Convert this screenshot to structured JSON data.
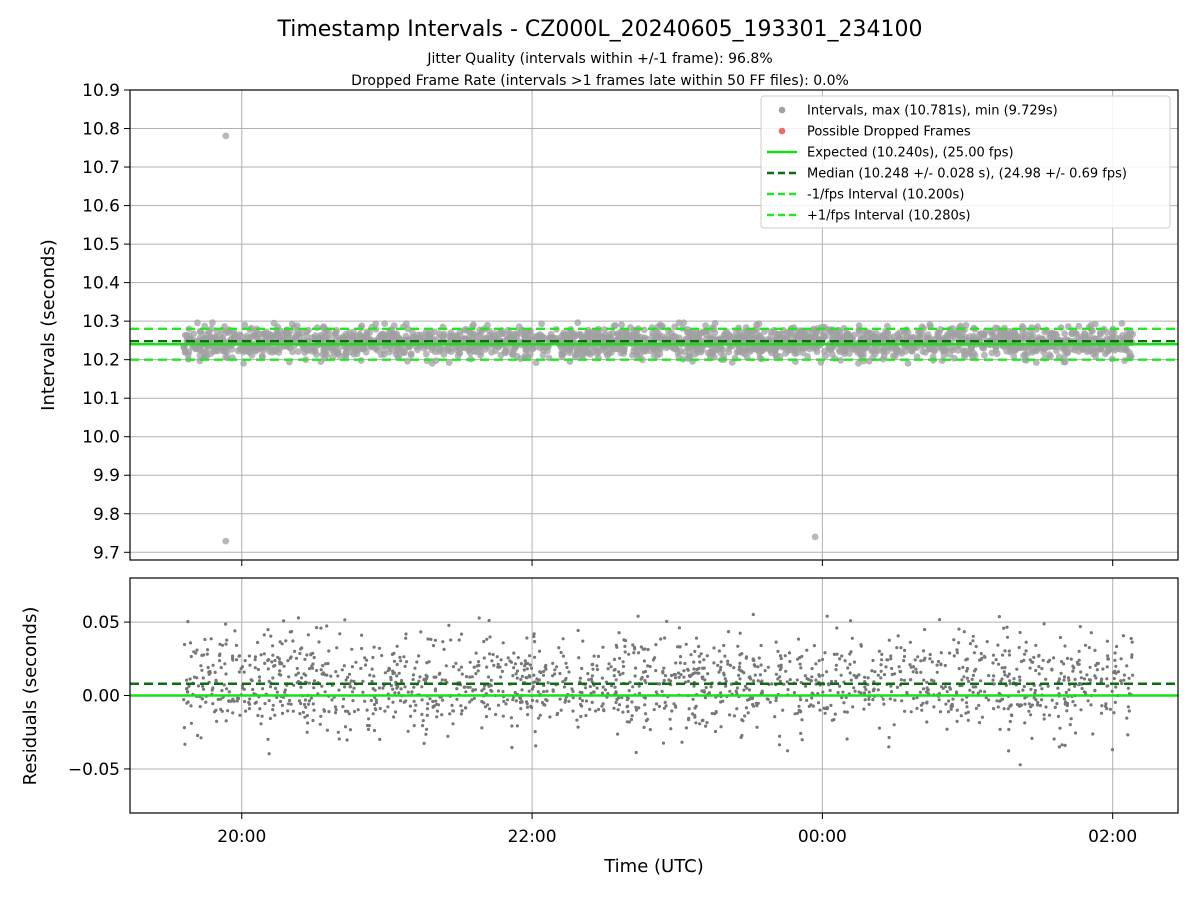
{
  "chart_data": {
    "type": "scatter",
    "title": "Timestamp Intervals - CZ000L_20240605_193301_234100",
    "subtitle_lines": [
      "Jitter Quality (intervals within +/-1 frame): 96.8%",
      "Dropped Frame Rate (intervals >1 frames late within 50 FF files): 0.0%"
    ],
    "xlabel": "Time (UTC)",
    "x_tick_labels": [
      "20:00",
      "22:00",
      "00:00",
      "02:00"
    ],
    "x_ticks_hours": [
      20,
      22,
      24,
      26
    ],
    "x_range_hours": [
      19.23,
      26.45
    ],
    "data_x_range_hours": [
      19.6,
      26.14
    ],
    "panels": [
      {
        "name": "intervals",
        "ylabel": "Intervals (seconds)",
        "ylim": [
          9.68,
          10.9
        ],
        "y_ticks": [
          "10.9",
          "10.8",
          "10.7",
          "10.6",
          "10.5",
          "10.4",
          "10.3",
          "10.2",
          "10.1",
          "10.0",
          "9.9",
          "9.8",
          "9.7"
        ],
        "y_tick_values": [
          10.9,
          10.8,
          10.7,
          10.6,
          10.5,
          10.4,
          10.3,
          10.2,
          10.1,
          10.0,
          9.9,
          9.8,
          9.7
        ],
        "grid": true,
        "legend_position": "top-right",
        "legend": [
          {
            "label": "Intervals, max (10.781s), min (9.729s)",
            "marker": "dot",
            "color": "#a0a0a0"
          },
          {
            "label": "Possible Dropped Frames",
            "marker": "dot",
            "color": "#ef6b6b"
          },
          {
            "label": "Expected (10.240s), (25.00 fps)",
            "marker": "solid",
            "color": "#16e016"
          },
          {
            "label": "Median (10.248 +/- 0.028 s), (24.98 +/- 0.69 fps)",
            "marker": "dashed",
            "color": "#0b6e0b"
          },
          {
            "label": "-1/fps Interval (10.200s)",
            "marker": "dashed",
            "color": "#22e822"
          },
          {
            "label": "+1/fps Interval (10.280s)",
            "marker": "dashed",
            "color": "#22e822"
          }
        ],
        "lines": [
          {
            "name": "expected",
            "y": 10.24,
            "style": "solid",
            "color": "#16e016"
          },
          {
            "name": "median",
            "y": 10.248,
            "style": "dashed",
            "color": "#0b6e0b"
          },
          {
            "name": "minus-1-fps",
            "y": 10.2,
            "style": "dashed",
            "color": "#22e822"
          },
          {
            "name": "plus-1-fps",
            "y": 10.28,
            "style": "dashed",
            "color": "#22e822"
          }
        ],
        "point_color": "#a0a0a0",
        "bulk_points": {
          "count": 2200,
          "center": 10.245,
          "spread": 0.02,
          "min": 10.19,
          "max": 10.296
        },
        "outliers": [
          {
            "x_hours": 19.89,
            "y": 10.781
          },
          {
            "x_hours": 19.89,
            "y": 9.729
          },
          {
            "x_hours": 23.95,
            "y": 9.74
          }
        ]
      },
      {
        "name": "residuals",
        "ylabel": "Residuals (seconds)",
        "ylim": [
          -0.08,
          0.08
        ],
        "y_ticks": [
          "0.05",
          "0.00",
          "−0.05"
        ],
        "y_tick_values": [
          0.05,
          0.0,
          -0.05
        ],
        "grid": true,
        "lines": [
          {
            "name": "zero",
            "y": 0.0,
            "style": "solid",
            "color": "#16e016"
          },
          {
            "name": "median-offset",
            "y": 0.008,
            "style": "dashed",
            "color": "#0b6e0b"
          }
        ],
        "point_color": "#777777",
        "bulk_points": {
          "count": 1700,
          "center": 0.008,
          "spread": 0.017,
          "min": -0.05,
          "max": 0.056
        }
      }
    ]
  }
}
